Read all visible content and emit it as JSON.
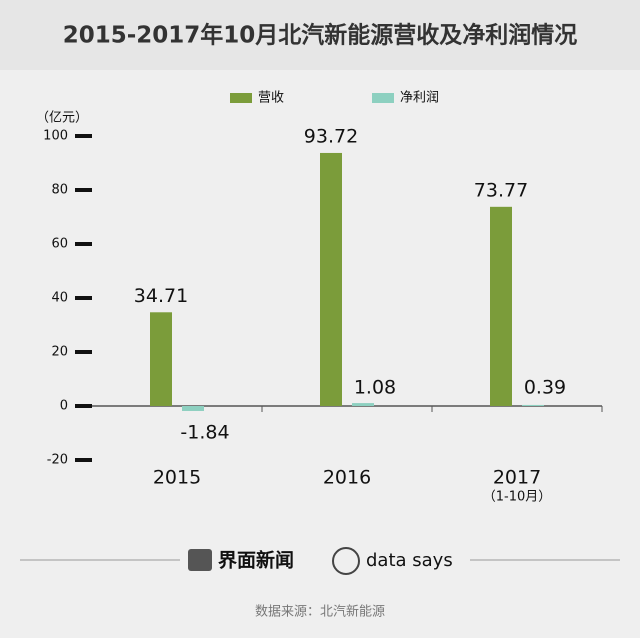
{
  "chart_data": {
    "type": "bar",
    "title": "2015-2017年10月北汽新能源营收及净利润情况",
    "y_label": "（亿元）",
    "categories": [
      "2015",
      "2016",
      "2017"
    ],
    "category_note": "（1-10月）",
    "series": [
      {
        "name": "营收",
        "color": "#7b9c3a",
        "values": [
          34.71,
          93.72,
          73.77
        ]
      },
      {
        "name": "净利润",
        "color": "#8dd0c0",
        "values": [
          -1.84,
          1.08,
          0.39
        ]
      }
    ],
    "ylim": [
      -20,
      100
    ],
    "yticks": [
      -20,
      0,
      20,
      40,
      60,
      80,
      100
    ]
  },
  "footer": {
    "brand": "界面新闻",
    "brand2": "data says",
    "source": "数据来源：北汽新能源"
  }
}
